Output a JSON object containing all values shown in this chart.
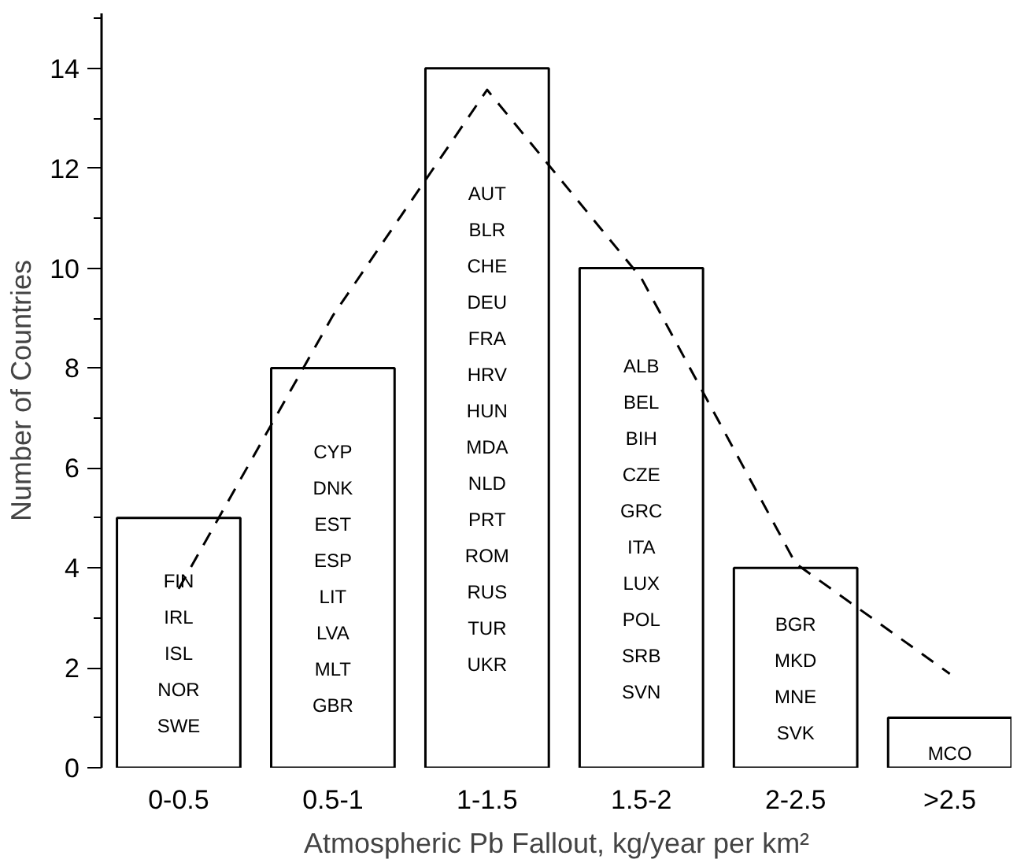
{
  "chart_data": {
    "type": "bar",
    "xlabel": "Atmospheric Pb Fallout, kg/year per km²",
    "ylabel": "Number of Countries",
    "categories": [
      "0-0.5",
      "0.5-1",
      "1-1.5",
      "1.5-2",
      "2-2.5",
      ">2.5"
    ],
    "ylim": [
      0,
      15.1
    ],
    "yticks": [
      0,
      {
        "value": 1,
        "label": null
      },
      2,
      {
        "value": 3,
        "label": null
      },
      4,
      {
        "value": 5,
        "label": null
      },
      6,
      {
        "value": 7,
        "label": null
      },
      8,
      {
        "value": 9,
        "label": null
      },
      10,
      {
        "value": 11,
        "label": null
      },
      12,
      {
        "value": 13,
        "label": null
      },
      14,
      {
        "value": 15,
        "label": null
      }
    ],
    "grid": false,
    "series": [
      {
        "color": "#ffffff",
        "values": [
          5,
          8,
          14,
          10,
          4,
          1
        ]
      },
      {
        "type": "line",
        "color": "#000000",
        "line_style": "dashed",
        "values": [
          3.58,
          9.05,
          13.57,
          9.8,
          4.09,
          1.88
        ]
      }
    ],
    "annotations": [
      "FIN",
      "IRL",
      "ISL",
      "NOR",
      "SWE",
      "CYP",
      "DNK",
      "EST",
      "ESP",
      "LIT",
      "LVA",
      "MLT",
      "GBR",
      "AUT",
      "BLR",
      "CHE",
      "DEU",
      "FRA",
      "HRV",
      "HUN",
      "MDA",
      "NLD",
      "PRT",
      "ROM",
      "RUS",
      "TUR",
      "UKR",
      "ALB",
      "BEL",
      "BIH",
      "CZE",
      "GRC",
      "ITA",
      "LUX",
      "POL",
      "SRB",
      "SVN",
      "BGR",
      "MKD",
      "MNE",
      "SVK",
      "MCO"
    ]
  }
}
